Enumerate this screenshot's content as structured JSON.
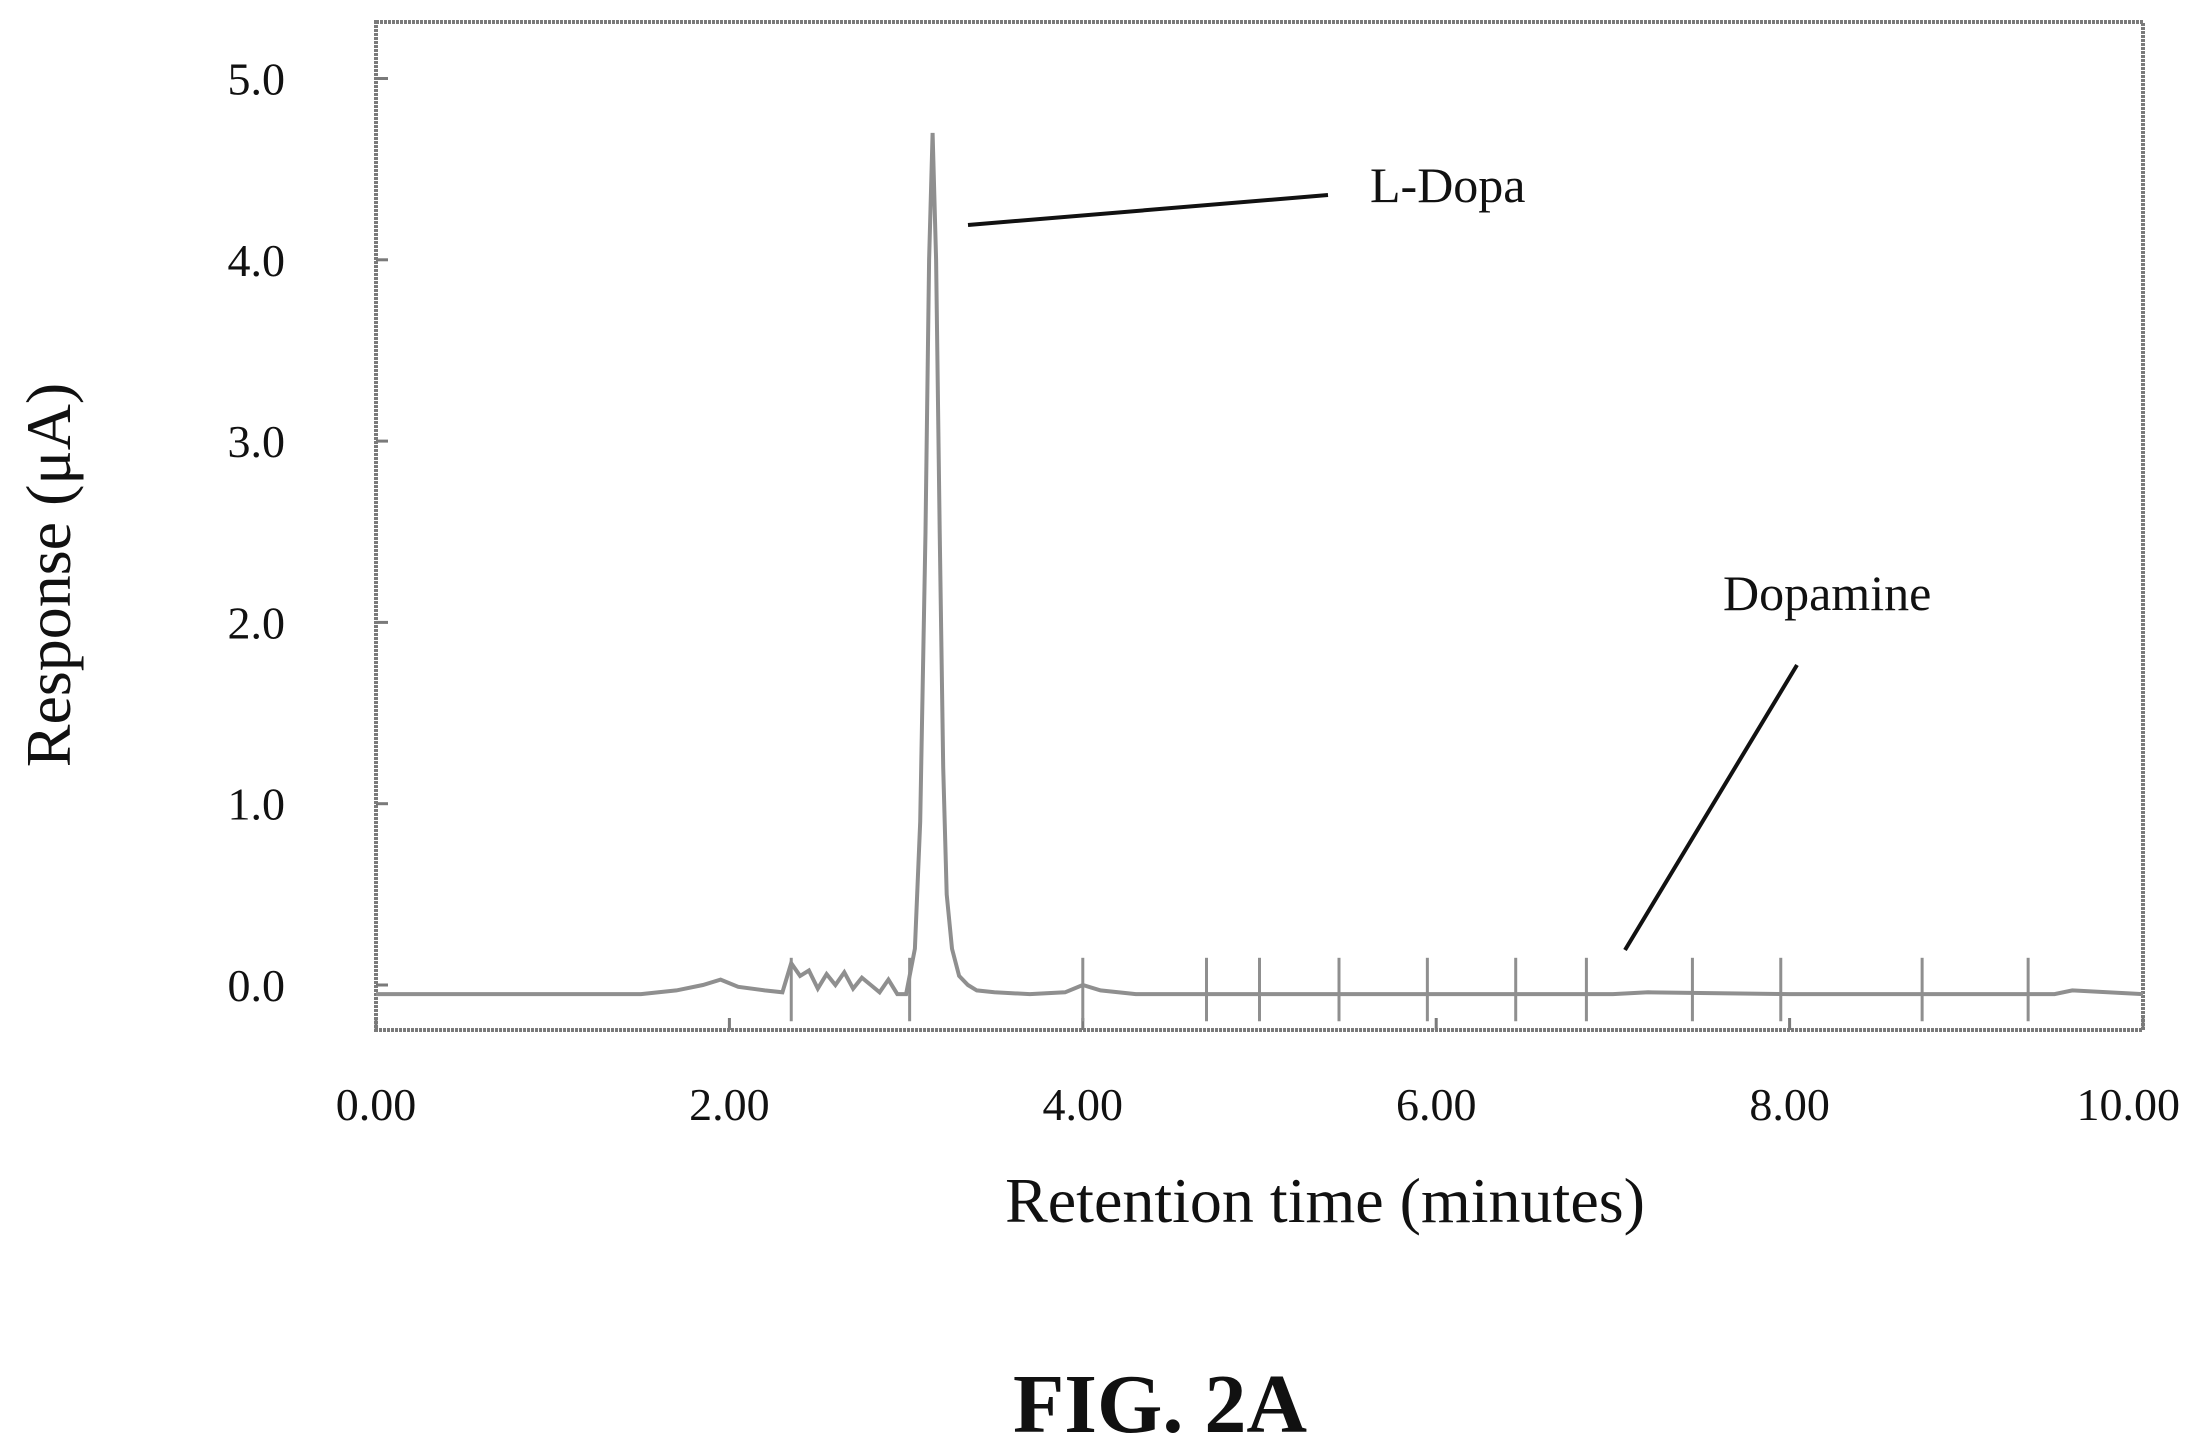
{
  "chart_data": {
    "type": "line",
    "title": "",
    "xlabel": "Retention time (minutes)",
    "ylabel": "Response (μA)",
    "xlim": [
      0,
      10
    ],
    "ylim": [
      -0.25,
      5.5
    ],
    "x_ticks": [
      "0.00",
      "2.00",
      "4.00",
      "6.00",
      "8.00",
      "10.00"
    ],
    "y_ticks": [
      "0.0",
      "1.0",
      "2.0",
      "3.0",
      "4.0",
      "5.0"
    ],
    "grid": false,
    "series": [
      {
        "x": [
          0,
          0.5,
          1.0,
          1.5,
          1.7,
          1.85,
          1.95,
          2.05,
          2.2,
          2.3,
          2.35,
          2.4,
          2.45,
          2.5,
          2.55,
          2.6,
          2.65,
          2.7,
          2.75,
          2.8,
          2.85,
          2.9,
          2.95,
          3.0,
          3.05,
          3.08,
          3.11,
          3.13,
          3.15,
          3.17,
          3.19,
          3.21,
          3.23,
          3.26,
          3.3,
          3.35,
          3.4,
          3.5,
          3.7,
          3.9,
          4.0,
          4.1,
          4.3,
          5.0,
          6.0,
          7.0,
          7.2,
          8.0,
          9.0,
          9.5,
          9.6,
          10.0
        ],
        "y": [
          -0.05,
          -0.05,
          -0.05,
          -0.05,
          -0.03,
          0.0,
          0.03,
          -0.01,
          -0.03,
          -0.04,
          0.12,
          0.05,
          0.08,
          -0.02,
          0.06,
          0.0,
          0.07,
          -0.02,
          0.04,
          0.0,
          -0.04,
          0.03,
          -0.05,
          -0.05,
          0.2,
          0.9,
          2.5,
          4.0,
          4.7,
          4.0,
          2.5,
          1.2,
          0.5,
          0.2,
          0.05,
          0.0,
          -0.03,
          -0.04,
          -0.05,
          -0.04,
          0.0,
          -0.03,
          -0.05,
          -0.05,
          -0.05,
          -0.05,
          -0.04,
          -0.05,
          -0.05,
          -0.05,
          -0.03,
          -0.05
        ]
      }
    ],
    "annotations": [
      {
        "text": "L-Dopa",
        "x": 3.25,
        "y": 4.2
      },
      {
        "text": "Dopamine",
        "x": 7.2,
        "y": 0.2
      }
    ]
  },
  "figure_label": "FIG. 2A",
  "colors": {
    "trace": "#8f8f8f",
    "frame": "#7a7a7a",
    "text": "#111111"
  }
}
